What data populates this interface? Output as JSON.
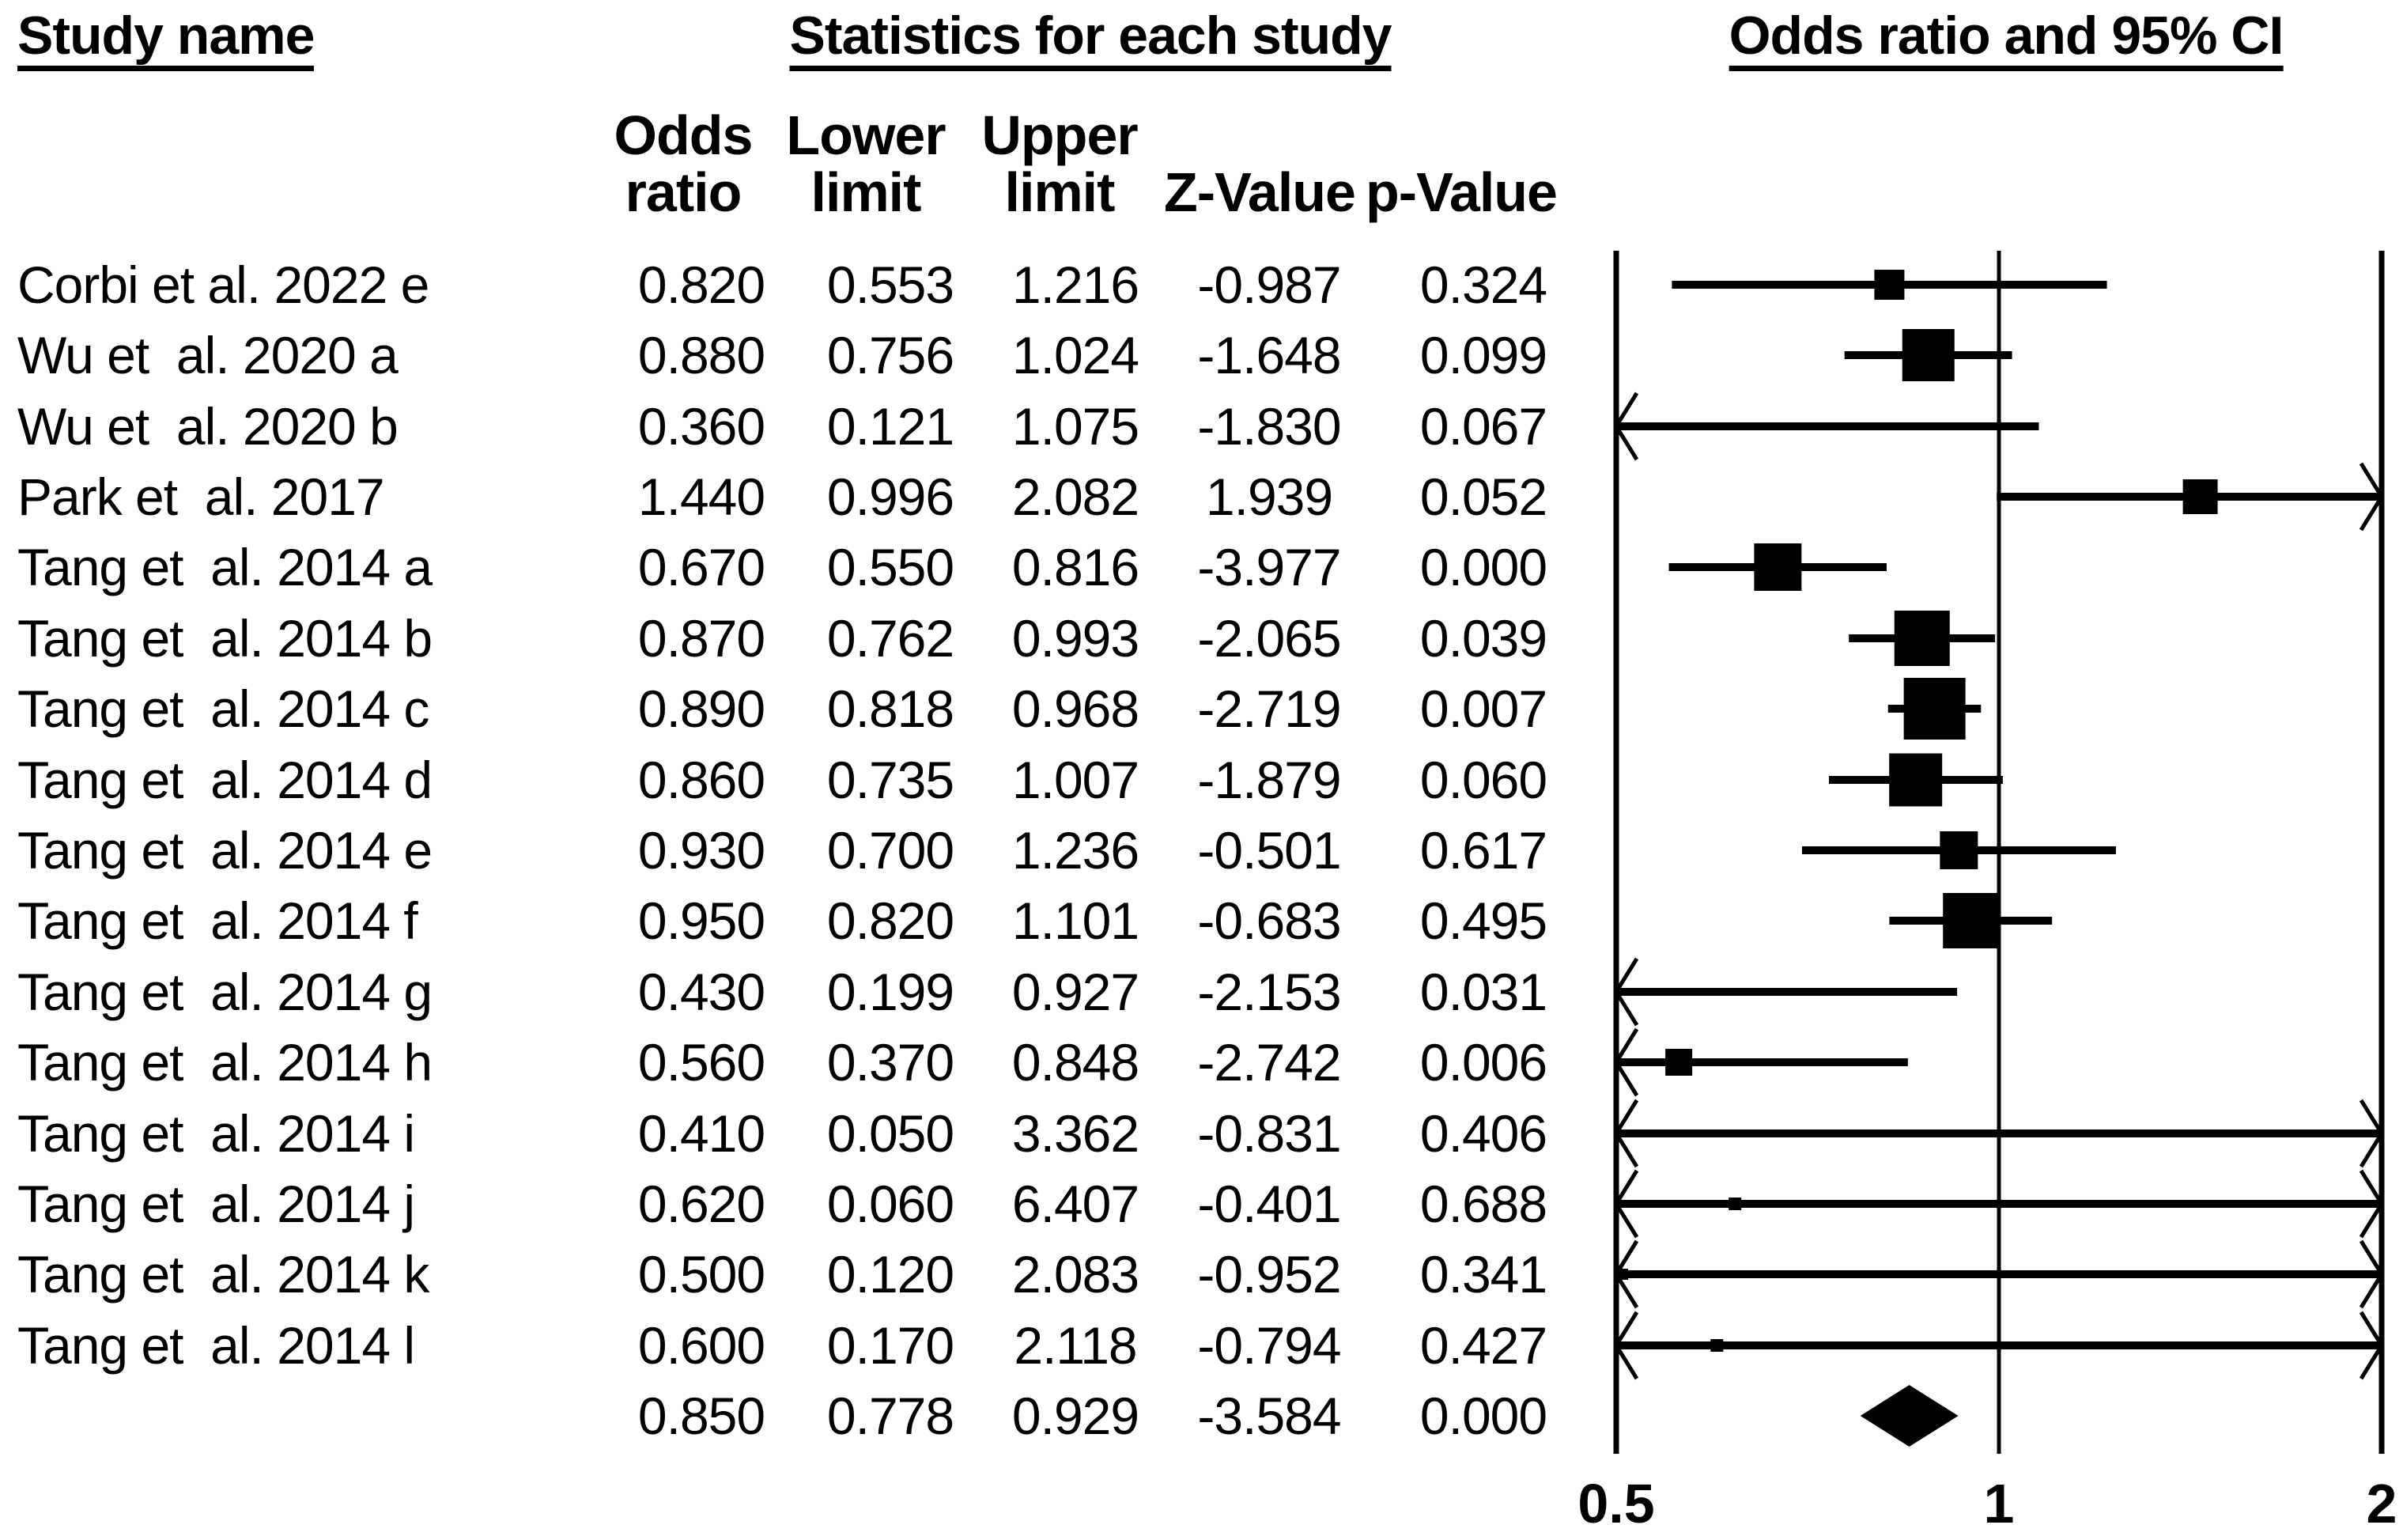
{
  "headers": {
    "study": "Study name",
    "stats": "Statistics for each study",
    "plot": "Odds ratio and 95% CI"
  },
  "stat_columns": [
    {
      "top": "Odds",
      "bottom": "ratio"
    },
    {
      "top": "Lower",
      "bottom": "limit"
    },
    {
      "top": "Upper",
      "bottom": "limit"
    },
    {
      "top": "",
      "bottom": "Z-Value"
    },
    {
      "top": "",
      "bottom": "p-Value"
    }
  ],
  "chart_data": {
    "type": "forest",
    "x_scale": "log",
    "xlim": [
      0.5,
      2
    ],
    "x_tick_values": [
      0.5,
      1,
      2
    ],
    "x_tick_labels": [
      "0.5",
      "1",
      "2"
    ],
    "effect_measure": "Odds ratio",
    "studies": [
      {
        "name": "Corbi et al. 2022 e",
        "odds_ratio": "0.820",
        "lower_limit": "0.553",
        "upper_limit": "1.216",
        "z_value": "-0.987",
        "p_value": "0.324",
        "marker_px": 38
      },
      {
        "name": "Wu et  al. 2020 a",
        "odds_ratio": "0.880",
        "lower_limit": "0.756",
        "upper_limit": "1.024",
        "z_value": "-1.648",
        "p_value": "0.099",
        "marker_px": 66
      },
      {
        "name": "Wu et  al. 2020 b",
        "odds_ratio": "0.360",
        "lower_limit": "0.121",
        "upper_limit": "1.075",
        "z_value": "-1.830",
        "p_value": "0.067",
        "marker_px": 0
      },
      {
        "name": "Park et  al. 2017",
        "odds_ratio": "1.440",
        "lower_limit": "0.996",
        "upper_limit": "2.082",
        "z_value": "1.939",
        "p_value": "0.052",
        "marker_px": 44
      },
      {
        "name": "Tang et  al. 2014 a",
        "odds_ratio": "0.670",
        "lower_limit": "0.550",
        "upper_limit": "0.816",
        "z_value": "-3.977",
        "p_value": "0.000",
        "marker_px": 60
      },
      {
        "name": "Tang et  al. 2014 b",
        "odds_ratio": "0.870",
        "lower_limit": "0.762",
        "upper_limit": "0.993",
        "z_value": "-2.065",
        "p_value": "0.039",
        "marker_px": 70
      },
      {
        "name": "Tang et  al. 2014 c",
        "odds_ratio": "0.890",
        "lower_limit": "0.818",
        "upper_limit": "0.968",
        "z_value": "-2.719",
        "p_value": "0.007",
        "marker_px": 78
      },
      {
        "name": "Tang et  al. 2014 d",
        "odds_ratio": "0.860",
        "lower_limit": "0.735",
        "upper_limit": "1.007",
        "z_value": "-1.879",
        "p_value": "0.060",
        "marker_px": 67
      },
      {
        "name": "Tang et  al. 2014 e",
        "odds_ratio": "0.930",
        "lower_limit": "0.700",
        "upper_limit": "1.236",
        "z_value": "-0.501",
        "p_value": "0.617",
        "marker_px": 48
      },
      {
        "name": "Tang et  al. 2014 f",
        "odds_ratio": "0.950",
        "lower_limit": "0.820",
        "upper_limit": "1.101",
        "z_value": "-0.683",
        "p_value": "0.495",
        "marker_px": 70
      },
      {
        "name": "Tang et  al. 2014 g",
        "odds_ratio": "0.430",
        "lower_limit": "0.199",
        "upper_limit": "0.927",
        "z_value": "-2.153",
        "p_value": "0.031",
        "marker_px": 0
      },
      {
        "name": "Tang et  al. 2014 h",
        "odds_ratio": "0.560",
        "lower_limit": "0.370",
        "upper_limit": "0.848",
        "z_value": "-2.742",
        "p_value": "0.006",
        "marker_px": 34
      },
      {
        "name": "Tang et  al. 2014 i",
        "odds_ratio": "0.410",
        "lower_limit": "0.050",
        "upper_limit": "3.362",
        "z_value": "-0.831",
        "p_value": "0.406",
        "marker_px": 0
      },
      {
        "name": "Tang et  al. 2014 j",
        "odds_ratio": "0.620",
        "lower_limit": "0.060",
        "upper_limit": "6.407",
        "z_value": "-0.401",
        "p_value": "0.688",
        "marker_px": 16
      },
      {
        "name": "Tang et  al. 2014 k",
        "odds_ratio": "0.500",
        "lower_limit": "0.120",
        "upper_limit": "2.083",
        "z_value": "-0.952",
        "p_value": "0.341",
        "marker_px": 14
      },
      {
        "name": "Tang et  al. 2014 l",
        "odds_ratio": "0.600",
        "lower_limit": "0.170",
        "upper_limit": "2.118",
        "z_value": "-0.794",
        "p_value": "0.427",
        "marker_px": 16
      }
    ],
    "summary": {
      "name": "",
      "odds_ratio": "0.850",
      "lower_limit": "0.778",
      "upper_limit": "0.929",
      "z_value": "-3.584",
      "p_value": "0.000"
    }
  },
  "colors": {
    "ink": "#000000",
    "background": "#ffffff"
  }
}
